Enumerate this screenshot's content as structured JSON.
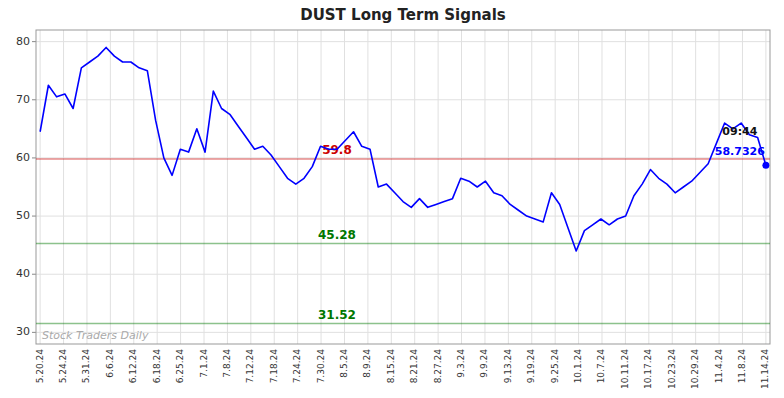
{
  "chart_data": {
    "type": "line",
    "title": "DUST Long Term Signals",
    "color": "#0000FF",
    "values": [
      64.5,
      72.5,
      70.5,
      71.0,
      68.5,
      75.5,
      76.5,
      77.5,
      79.0,
      77.5,
      76.5,
      76.5,
      75.5,
      75.0,
      66.5,
      60.0,
      57.0,
      61.5,
      61.0,
      65.0,
      61.0,
      71.5,
      68.5,
      67.5,
      65.5,
      63.5,
      61.5,
      62.0,
      60.5,
      58.5,
      56.5,
      55.5,
      56.5,
      58.5,
      62.0,
      61.5,
      61.5,
      63.0,
      64.5,
      62.0,
      61.5,
      55.0,
      55.5,
      54.0,
      52.5,
      51.5,
      53.0,
      51.5,
      52.0,
      52.5,
      53.0,
      56.5,
      56.0,
      55.0,
      56.0,
      54.0,
      53.5,
      52.0,
      51.0,
      50.0,
      49.5,
      49.0,
      54.0,
      52.0,
      48.0,
      44.0,
      47.5,
      48.5,
      49.5,
      48.5,
      49.5,
      50.0,
      53.5,
      55.5,
      58.0,
      56.5,
      55.5,
      54.0,
      55.0,
      56.0,
      57.5,
      59.0,
      62.5,
      66.0,
      65.0,
      66.0,
      64.0,
      63.5,
      58.7326
    ],
    "xlim": [
      -0.5,
      88.5
    ],
    "xticks": [
      {
        "value": 0,
        "label": "5.20.24"
      },
      {
        "value": 2.83871,
        "label": "5.24.24"
      },
      {
        "value": 5.677419,
        "label": "5.31.24"
      },
      {
        "value": 8.516129,
        "label": "6.6.24"
      },
      {
        "value": 11.354839,
        "label": "6.12.24"
      },
      {
        "value": 14.193548,
        "label": "6.18.24"
      },
      {
        "value": 17.032258,
        "label": "6.25.24"
      },
      {
        "value": 19.870968,
        "label": "7.1.24"
      },
      {
        "value": 22.709677,
        "label": "7.8.24"
      },
      {
        "value": 25.548387,
        "label": "7.12.24"
      },
      {
        "value": 28.387097,
        "label": "7.18.24"
      },
      {
        "value": 31.225806,
        "label": "7.24.24"
      },
      {
        "value": 34.064516,
        "label": "7.30.24"
      },
      {
        "value": 36.903226,
        "label": "8.5.24"
      },
      {
        "value": 39.741935,
        "label": "8.9.24"
      },
      {
        "value": 42.580645,
        "label": "8.15.24"
      },
      {
        "value": 45.419355,
        "label": "8.21.24"
      },
      {
        "value": 48.258065,
        "label": "8.27.24"
      },
      {
        "value": 51.096774,
        "label": "9.3.24"
      },
      {
        "value": 53.935484,
        "label": "9.9.24"
      },
      {
        "value": 56.774194,
        "label": "9.13.24"
      },
      {
        "value": 59.612903,
        "label": "9.19.24"
      },
      {
        "value": 62.451613,
        "label": "9.25.24"
      },
      {
        "value": 65.290323,
        "label": "10.1.24"
      },
      {
        "value": 68.129032,
        "label": "10.7.24"
      },
      {
        "value": 70.967742,
        "label": "10.11.24"
      },
      {
        "value": 73.806452,
        "label": "10.17.24"
      },
      {
        "value": 76.645161,
        "label": "10.23.24"
      },
      {
        "value": 79.483871,
        "label": "10.29.24"
      },
      {
        "value": 82.322581,
        "label": "11.4.24"
      },
      {
        "value": 85.16129,
        "label": "11.8.24"
      },
      {
        "value": 88,
        "label": "11.14.24"
      }
    ],
    "ylim": [
      28,
      82
    ],
    "yticks": [
      30,
      40,
      50,
      60,
      70,
      80
    ],
    "grid": true,
    "hlines": [
      {
        "value": 59.8,
        "color": "#cc0000"
      },
      {
        "value": 45.28,
        "color": "#007700"
      },
      {
        "value": 31.52,
        "color": "#007700"
      }
    ],
    "annotations": [
      "09:44",
      "58.7326"
    ],
    "watermark": "Stock Traders Daily"
  }
}
